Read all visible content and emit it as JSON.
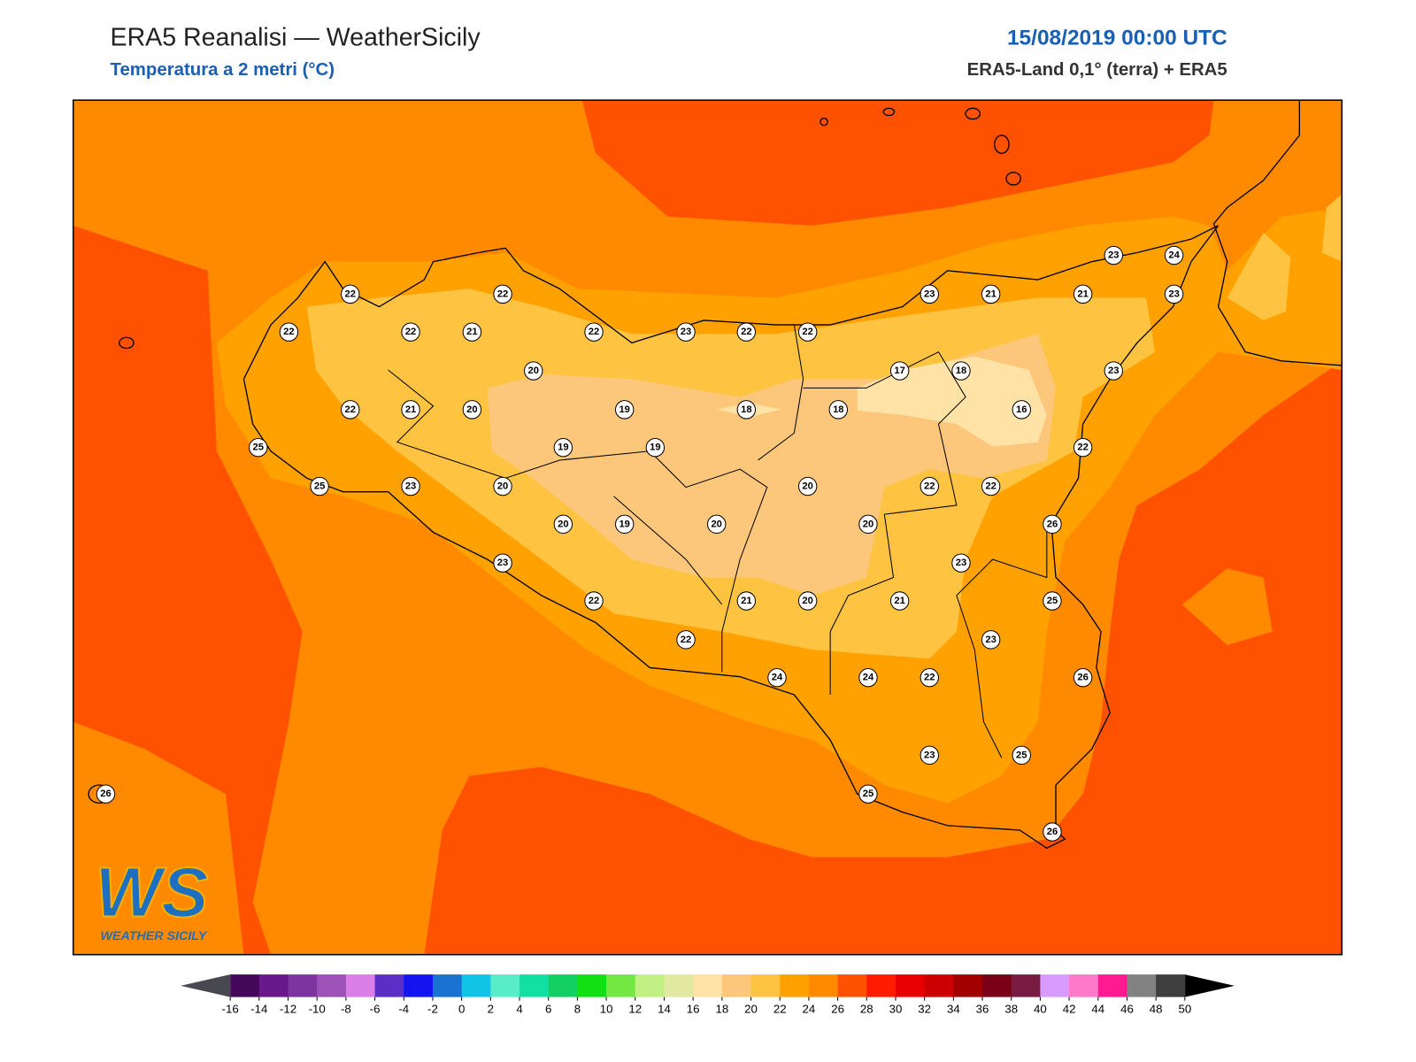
{
  "header": {
    "title": "ERA5 Reanalisi — WeatherSicily",
    "subtitle": "Temperatura a 2 metri (°C)",
    "date": "15/08/2019 00:00 UTC",
    "source": "ERA5-Land 0,1° (terra) + ERA5"
  },
  "logo": {
    "mark": "WS",
    "name": "WEATHER SICILY"
  },
  "stations": [
    22,
    22,
    22,
    22,
    21,
    22,
    23,
    22,
    22,
    23,
    21,
    21,
    23,
    24,
    23,
    20,
    17,
    18,
    23,
    22,
    21,
    20,
    19,
    18,
    18,
    16,
    25,
    19,
    19,
    22,
    25,
    23,
    20,
    20,
    22,
    22,
    20,
    19,
    20,
    20,
    26,
    23,
    23,
    22,
    21,
    20,
    21,
    25,
    22,
    23,
    24,
    24,
    22,
    26,
    23,
    25,
    25,
    26,
    26
  ],
  "colorbar": {
    "ticks": [
      -16,
      -14,
      -12,
      -10,
      -8,
      -6,
      -4,
      -2,
      0,
      2,
      4,
      6,
      8,
      10,
      12,
      14,
      16,
      18,
      20,
      22,
      24,
      26,
      28,
      30,
      32,
      34,
      36,
      38,
      40,
      42,
      44,
      46,
      48,
      50
    ],
    "colors": [
      "#45095a",
      "#681a8c",
      "#7e34a0",
      "#9c52b6",
      "#d97fe6",
      "#5b2ec8",
      "#1414f0",
      "#1a72d2",
      "#12c3e8",
      "#58ecc8",
      "#12e0a2",
      "#14d064",
      "#12e012",
      "#74e842",
      "#c2f082",
      "#e0e8a2",
      "#ffe2a6",
      "#fcc77a",
      "#fec441",
      "#ffa100",
      "#ff8a00",
      "#ff5200",
      "#ff1c00",
      "#e80000",
      "#cc0000",
      "#a20000",
      "#7a0018",
      "#7a1b42",
      "#d89cff",
      "#ff7ac8",
      "#ff1a92",
      "#828282",
      "#3f3f3f"
    ],
    "under_color": "#484850",
    "over_color": "#000000"
  }
}
